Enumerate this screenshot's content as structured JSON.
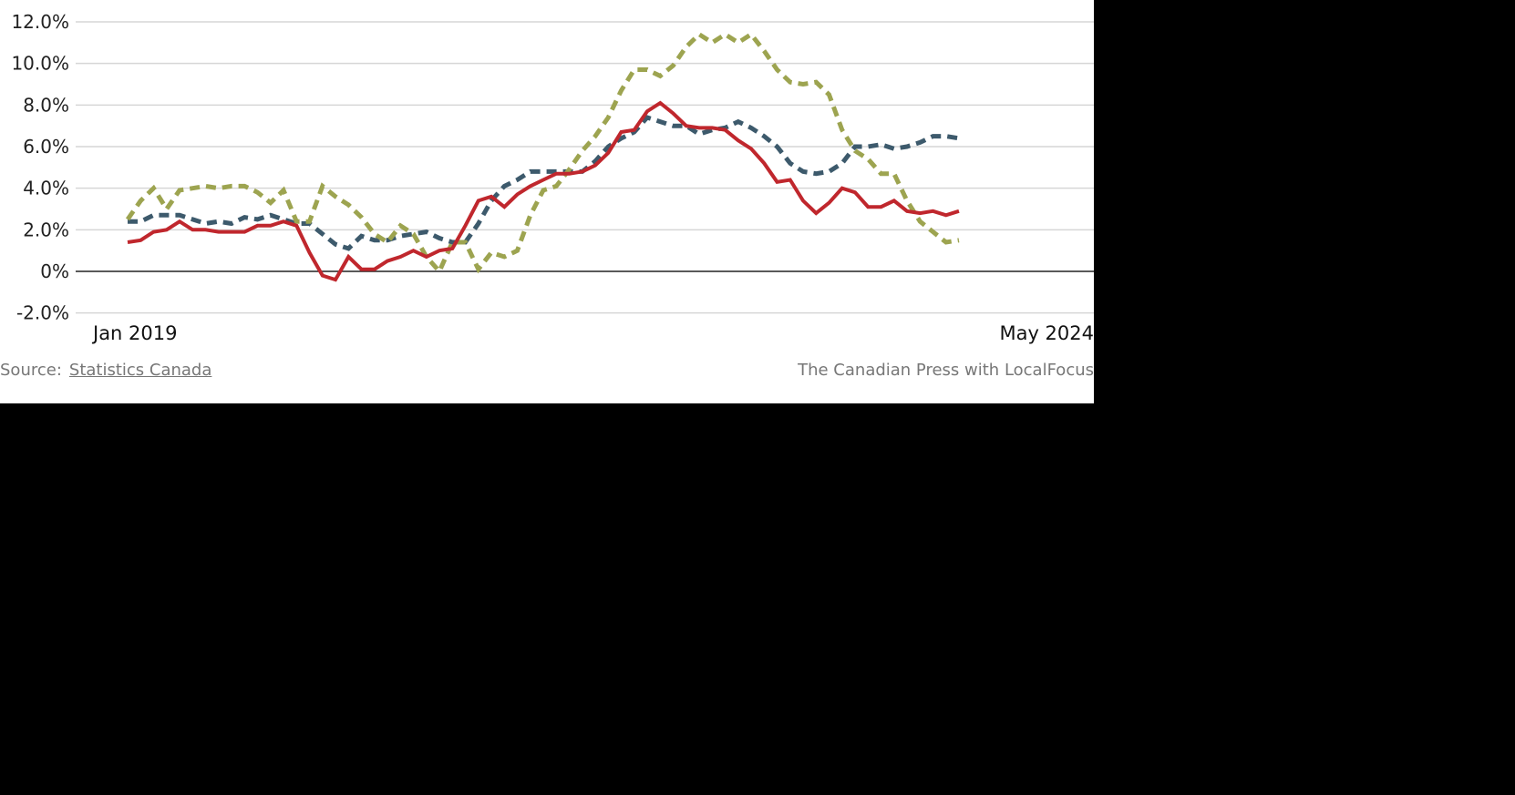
{
  "chart_data": {
    "type": "line",
    "title": "",
    "xlabel": "",
    "ylabel": "",
    "ylim": [
      -2,
      12
    ],
    "yticks": [
      -2,
      0,
      2,
      4,
      6,
      8,
      10,
      12
    ],
    "ytick_labels": [
      "-2.0%",
      "0%",
      "2.0%",
      "4.0%",
      "6.0%",
      "8.0%",
      "10.0%",
      "12.0%"
    ],
    "x_start": "Jan 2019",
    "x_end": "May 2024",
    "xtick_labels": [
      "Jan 2019",
      "May 2024"
    ],
    "grid": true,
    "series": [
      {
        "name": "solid-red",
        "color": "#c0272d",
        "style": "solid",
        "values": [
          1.4,
          1.5,
          1.9,
          2.0,
          2.4,
          2.0,
          2.0,
          1.9,
          1.9,
          1.9,
          2.2,
          2.2,
          2.4,
          2.2,
          0.9,
          -0.2,
          -0.4,
          0.7,
          0.1,
          0.1,
          0.5,
          0.7,
          1.0,
          0.7,
          1.0,
          1.1,
          2.2,
          3.4,
          3.6,
          3.1,
          3.7,
          4.1,
          4.4,
          4.7,
          4.7,
          4.8,
          5.1,
          5.7,
          6.7,
          6.8,
          7.7,
          8.1,
          7.6,
          7.0,
          6.9,
          6.9,
          6.8,
          6.3,
          5.9,
          5.2,
          4.3,
          4.4,
          3.4,
          2.8,
          3.3,
          4.0,
          3.8,
          3.1,
          3.1,
          3.4,
          2.9,
          2.8,
          2.9,
          2.7,
          2.9
        ]
      },
      {
        "name": "dashed-blue",
        "color": "#3d5a6c",
        "style": "dashed",
        "values": [
          2.4,
          2.4,
          2.7,
          2.7,
          2.7,
          2.5,
          2.3,
          2.4,
          2.3,
          2.6,
          2.5,
          2.7,
          2.5,
          2.3,
          2.3,
          1.8,
          1.3,
          1.1,
          1.7,
          1.5,
          1.5,
          1.7,
          1.8,
          1.9,
          1.6,
          1.4,
          1.4,
          2.3,
          3.4,
          4.1,
          4.4,
          4.8,
          4.8,
          4.8,
          4.8,
          4.8,
          5.3,
          6.0,
          6.4,
          6.7,
          7.4,
          7.2,
          7.0,
          7.0,
          6.6,
          6.8,
          6.9,
          7.2,
          6.9,
          6.5,
          6.0,
          5.2,
          4.8,
          4.7,
          4.8,
          5.2,
          6.0,
          6.0,
          6.1,
          5.9,
          6.0,
          6.2,
          6.5,
          6.5,
          6.4
        ]
      },
      {
        "name": "dashed-green",
        "color": "#9da450",
        "style": "dashed",
        "values": [
          2.5,
          3.4,
          4.0,
          3.0,
          3.9,
          4.0,
          4.1,
          4.0,
          4.1,
          4.1,
          3.8,
          3.3,
          3.9,
          2.4,
          2.4,
          4.1,
          3.6,
          3.2,
          2.6,
          1.8,
          1.4,
          2.2,
          1.8,
          0.7,
          0.0,
          1.4,
          1.4,
          0.1,
          0.9,
          0.7,
          1.0,
          2.7,
          3.9,
          4.1,
          4.9,
          5.8,
          6.5,
          7.4,
          8.7,
          9.7,
          9.7,
          9.4,
          9.9,
          10.8,
          11.4,
          11.0,
          11.4,
          11.0,
          11.4,
          10.6,
          9.7,
          9.1,
          9.0,
          9.1,
          8.5,
          6.8,
          5.8,
          5.4,
          4.7,
          4.7,
          3.4,
          2.4,
          1.9,
          1.4,
          1.5
        ]
      }
    ]
  },
  "footer": {
    "source_label": "Source:",
    "source_link": "Statistics Canada",
    "credit": "The Canadian Press with LocalFocus"
  }
}
